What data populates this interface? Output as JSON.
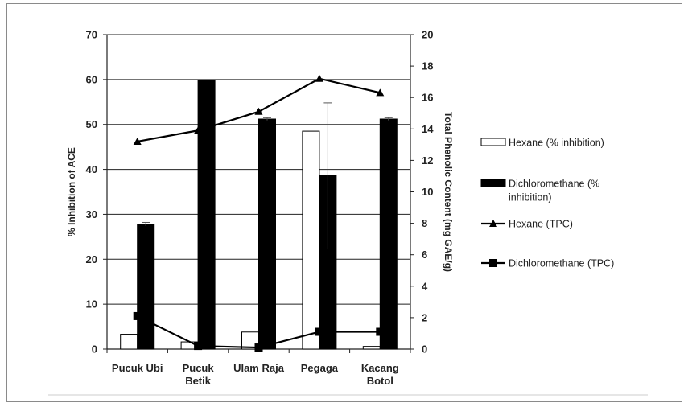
{
  "chart_data": {
    "type": "bar",
    "categories": [
      [
        "Pucuk Ubi"
      ],
      [
        "Pucuk",
        "Betik"
      ],
      [
        "Ulam Raja"
      ],
      [
        "Pegaga"
      ],
      [
        "Kacang",
        "Botol"
      ]
    ],
    "series": [
      {
        "name": "Hexane (% inhibition)",
        "kind": "bar",
        "axis": "left",
        "color": "#ffffff",
        "values": [
          3.3,
          1.6,
          3.8,
          48.5,
          0.6
        ],
        "errors": [
          0,
          0,
          0,
          0,
          0
        ]
      },
      {
        "name": "Dichloromethane (% inhibition)",
        "kind": "bar",
        "axis": "left",
        "color": "#000000",
        "values": [
          27.8,
          59.8,
          51.2,
          38.6,
          51.2
        ],
        "errors": [
          0.4,
          0,
          0.3,
          16.2,
          0.3
        ]
      },
      {
        "name": "Hexane (TPC)",
        "kind": "line",
        "axis": "right",
        "marker": "triangle",
        "values": [
          13.2,
          13.9,
          15.1,
          17.2,
          16.3
        ]
      },
      {
        "name": "Dichloromethane (TPC)",
        "kind": "line",
        "axis": "right",
        "marker": "square",
        "values": [
          2.1,
          0.2,
          0.1,
          1.1,
          1.1
        ]
      }
    ],
    "ylabel": "% Inhibition of ACE",
    "ylabel2": "Total Phenolic Content (mg GAE/g)",
    "ylim": [
      0,
      70
    ],
    "yticks": [
      0,
      10,
      20,
      30,
      40,
      50,
      60,
      70
    ],
    "ylim2": [
      0,
      20
    ],
    "yticks2": [
      0,
      2,
      4,
      6,
      8,
      10,
      12,
      14,
      16,
      18,
      20
    ],
    "grid": true,
    "legend_position": "right",
    "legend": [
      {
        "lines": [
          "Hexane (% inhibition)"
        ]
      },
      {
        "lines": [
          "Dichloromethane (%",
          "inhibition)"
        ]
      },
      {
        "lines": [
          "Hexane (TPC)"
        ]
      },
      {
        "lines": [
          "Dichloromethane (TPC)"
        ]
      }
    ]
  }
}
